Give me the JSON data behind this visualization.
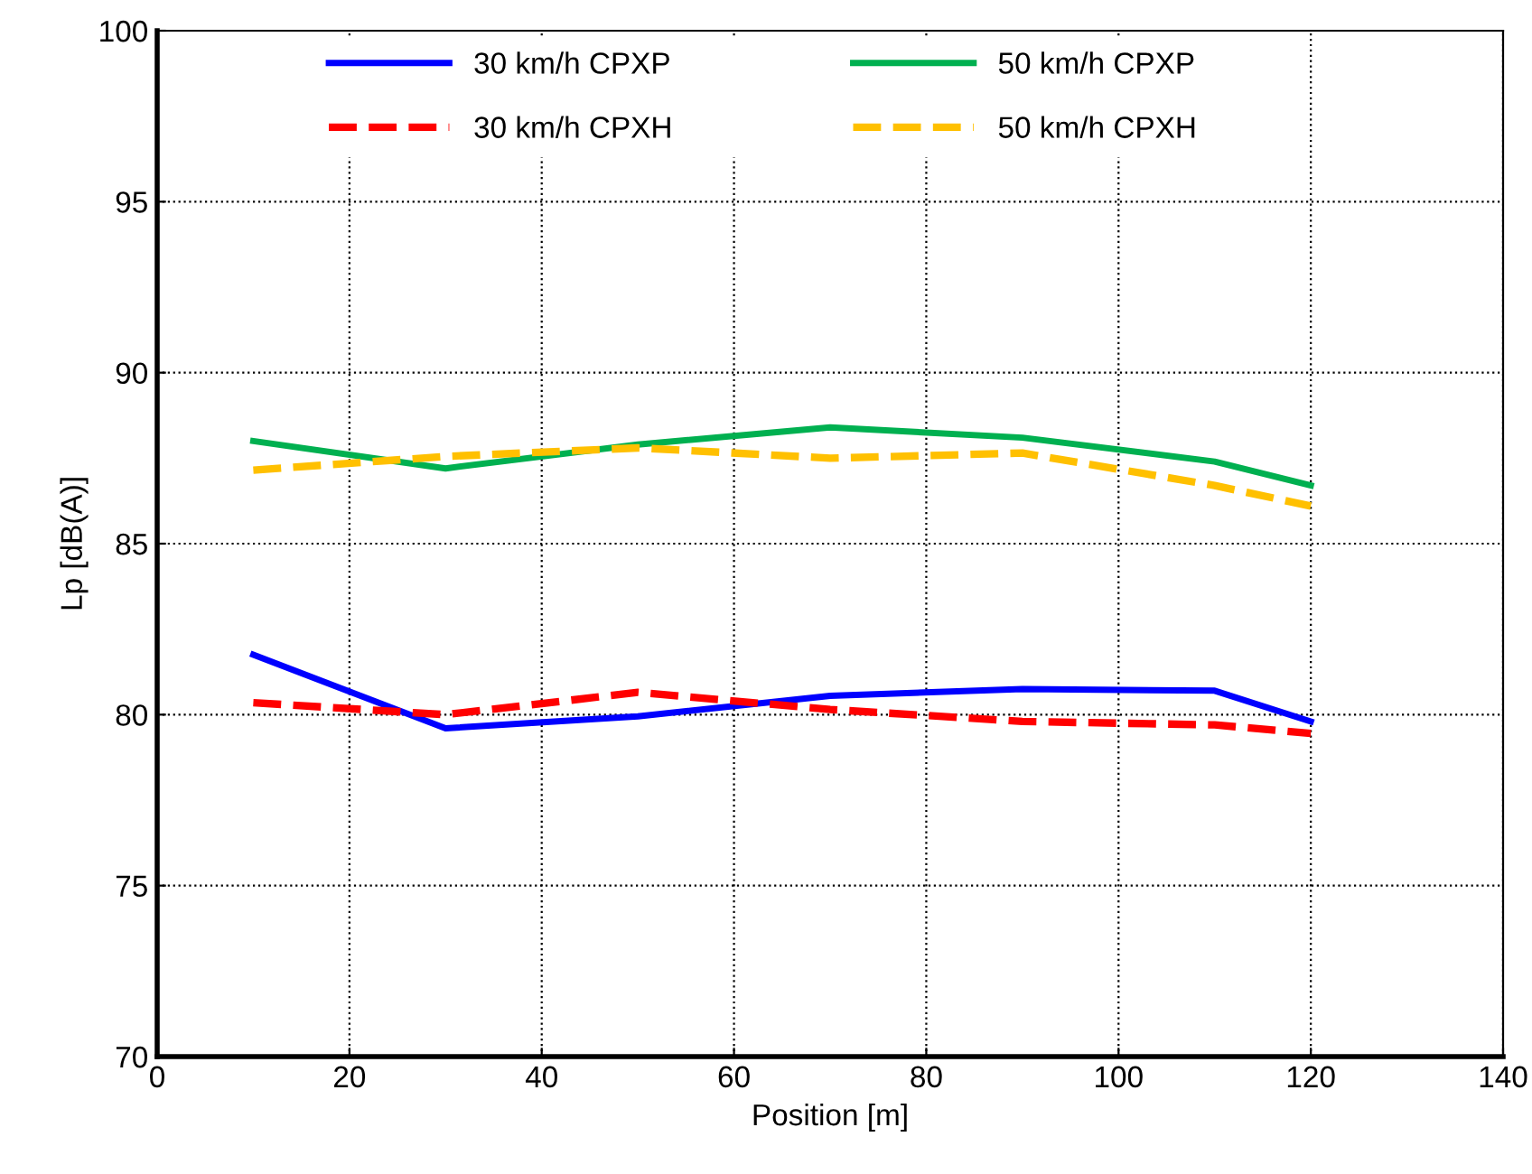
{
  "chart_data": {
    "type": "line",
    "xlabel": "Position [m]",
    "ylabel": "Lp [dB(A)]",
    "x": [
      10,
      30,
      50,
      70,
      90,
      110,
      120
    ],
    "series": [
      {
        "name": "30 km/h CPXP",
        "color": "#0000ff",
        "line_style": "solid",
        "values": [
          81.75,
          79.6,
          79.95,
          80.55,
          80.75,
          80.7,
          79.8
        ]
      },
      {
        "name": "50 km/h CPXP",
        "color": "#00b050",
        "line_style": "solid",
        "values": [
          88.0,
          87.2,
          87.9,
          88.4,
          88.1,
          87.4,
          86.7
        ]
      },
      {
        "name": "30 km/h CPXH",
        "color": "#ff0000",
        "line_style": "dashed",
        "values": [
          80.35,
          80.0,
          80.65,
          80.15,
          79.8,
          79.7,
          79.45
        ]
      },
      {
        "name": "50 km/h CPXH",
        "color": "#ffc000",
        "line_style": "dashed",
        "values": [
          87.15,
          87.55,
          87.8,
          87.5,
          87.65,
          86.7,
          86.1
        ]
      }
    ],
    "xlim": [
      0,
      140
    ],
    "xticks": [
      0,
      20,
      40,
      60,
      80,
      100,
      120,
      140
    ],
    "ylim": [
      70,
      100
    ],
    "yticks": [
      70,
      75,
      80,
      85,
      90,
      95,
      100
    ],
    "grid": true,
    "legend": "top",
    "marker": "none"
  }
}
